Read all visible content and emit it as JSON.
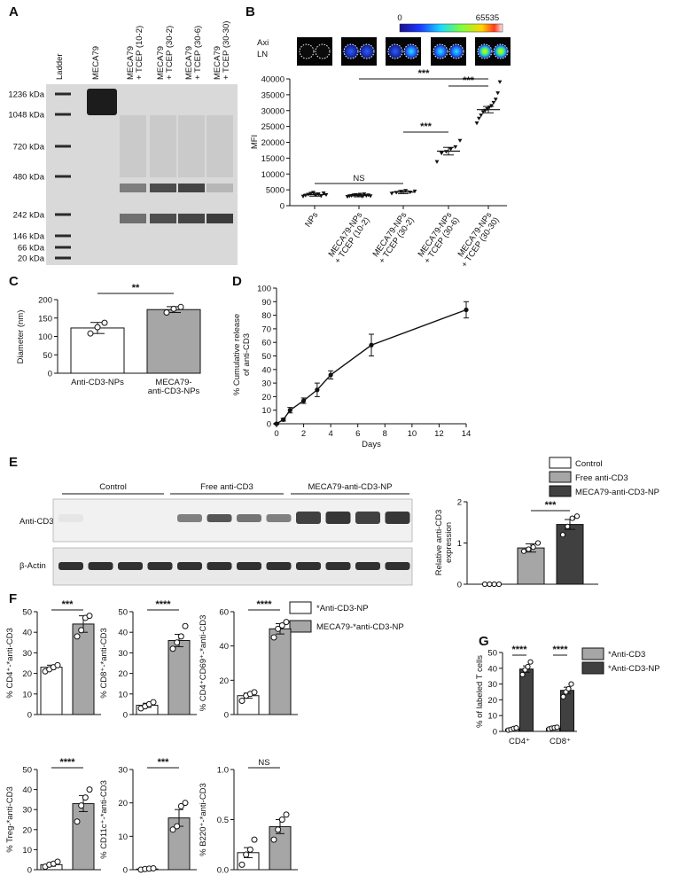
{
  "panels": {
    "A": {
      "label": "A",
      "lanes": [
        "Ladder",
        "MECA79",
        "MECA79\n+ TCEP (10-2)",
        "MECA79\n+ TCEP (30-2)",
        "MECA79\n+ TCEP (30-6)",
        "MECA79\n+ TCEP (30-30)"
      ],
      "markers": [
        "1236 kDa",
        "1048 kDa",
        "720 kDa",
        "480 kDa",
        "242 kDa",
        "146 kDa",
        "66 kDa",
        "20 kDa"
      ]
    },
    "B": {
      "label": "B",
      "colorbar_min": "0",
      "colorbar_max": "65535",
      "image_label_1": "Axi",
      "image_label_2": "LN"
    },
    "C": {
      "label": "C"
    },
    "D": {
      "label": "D"
    },
    "E": {
      "label": "E",
      "blot_groups": [
        "Control",
        "Free anti-CD3",
        "MECA79-anti-CD3-NP"
      ],
      "row_labels": [
        "Anti-CD3",
        "β-Actin"
      ],
      "legend": [
        "Control",
        "Free anti-CD3",
        "MECA79-anti-CD3-NP"
      ]
    },
    "F": {
      "label": "F",
      "legend": [
        "*Anti-CD3-NP",
        "MECA79-*anti-CD3-NP"
      ]
    },
    "G": {
      "label": "G",
      "legend": [
        "*Anti-CD3",
        "*Anti-CD3-NP"
      ]
    }
  },
  "chart_data": [
    {
      "id": "B",
      "type": "scatter",
      "categories": [
        "NPs",
        "MECA79-NPs\n+ TCEP (10-2)",
        "MECA79-NPs\n+ TCEP (30-2)",
        "MECA79-NPs\n+ TCEP (30-6)",
        "MECA79-NPs\n+ TCEP (30-30)"
      ],
      "means": [
        3500,
        3200,
        4300,
        17200,
        30300
      ],
      "errors": [
        500,
        400,
        500,
        1200,
        1000
      ],
      "points": [
        [
          2900,
          3200,
          3500,
          3800,
          4100,
          3300,
          3600,
          3000,
          3900,
          3400
        ],
        [
          2800,
          3000,
          3100,
          3300,
          3400,
          3200,
          3500,
          2900,
          3600,
          3100,
          3300,
          3000
        ],
        [
          3800,
          4100,
          4400,
          4700,
          4200,
          4500
        ],
        [
          13800,
          16500,
          17000,
          17800,
          18500,
          20500
        ],
        [
          26000,
          27500,
          28500,
          29500,
          30000,
          30500,
          31000,
          31500,
          32500,
          33500,
          35500,
          39000
        ]
      ],
      "ylabel": "MFI",
      "ylim": [
        0,
        40000
      ],
      "yticks": [
        0,
        5000,
        10000,
        15000,
        20000,
        25000,
        30000,
        35000,
        40000
      ],
      "significance": [
        {
          "from": 0,
          "to": 2,
          "label": "NS"
        },
        {
          "from": 2,
          "to": 3,
          "label": "***"
        },
        {
          "from": 1,
          "to": 4,
          "label": "***"
        },
        {
          "from": 3,
          "to": 4,
          "label": "***"
        }
      ]
    },
    {
      "id": "C",
      "type": "bar",
      "categories": [
        "Anti-CD3-NPs",
        "MECA79-\nanti-CD3-NPs"
      ],
      "values": [
        123,
        173
      ],
      "errors": [
        15,
        8
      ],
      "points": [
        [
          108,
          125,
          137
        ],
        [
          165,
          175,
          180
        ]
      ],
      "colors": [
        "#ffffff",
        "#a6a6a6"
      ],
      "ylabel": "Diameter (nm)",
      "ylim": [
        0,
        200
      ],
      "yticks": [
        0,
        50,
        100,
        150,
        200
      ],
      "significance": [
        {
          "from": 0,
          "to": 1,
          "label": "**"
        }
      ]
    },
    {
      "id": "D",
      "type": "line",
      "x": [
        0,
        0.5,
        1,
        2,
        3,
        4,
        7,
        14
      ],
      "values": [
        0,
        3,
        10,
        17,
        25,
        36,
        58,
        84
      ],
      "errors": [
        0.5,
        1,
        2,
        2,
        5,
        3,
        8,
        6
      ],
      "xlabel": "Days",
      "ylabel": "% Cumulative release\nof anti-CD3",
      "xlim": [
        0,
        14
      ],
      "xticks": [
        0,
        2,
        4,
        6,
        8,
        10,
        12,
        14
      ],
      "ylim": [
        0,
        100
      ],
      "yticks": [
        0,
        10,
        20,
        30,
        40,
        50,
        60,
        70,
        80,
        90,
        100
      ]
    },
    {
      "id": "E",
      "type": "bar",
      "categories": [
        "Control",
        "Free anti-CD3",
        "MECA79-anti-CD3-NP"
      ],
      "values": [
        0,
        0.88,
        1.45
      ],
      "errors": [
        0,
        0.1,
        0.12
      ],
      "points": [
        [
          0,
          0,
          0,
          0
        ],
        [
          0.8,
          0.85,
          0.9,
          1.0
        ],
        [
          1.2,
          1.4,
          1.6,
          1.65
        ]
      ],
      "colors": [
        "#ffffff",
        "#a6a6a6",
        "#404040"
      ],
      "ylabel": "Relative anti-CD3\nexpression",
      "ylim": [
        0,
        2
      ],
      "yticks": [
        0,
        1,
        2
      ],
      "significance": [
        {
          "from": 1,
          "to": 2,
          "label": "***"
        }
      ]
    },
    {
      "id": "F1",
      "type": "bar",
      "ylabel": "% CD4⁺-*anti-CD3",
      "values": [
        23,
        44
      ],
      "errors": [
        1,
        4
      ],
      "points": [
        [
          21,
          22,
          23,
          24
        ],
        [
          38,
          41,
          47,
          48
        ]
      ],
      "ylim": [
        0,
        50
      ],
      "yticks": [
        0,
        10,
        20,
        30,
        40,
        50
      ],
      "significance": [
        {
          "from": 0,
          "to": 1,
          "label": "***"
        }
      ]
    },
    {
      "id": "F2",
      "type": "bar",
      "ylabel": "% CD8⁺-*anti-CD3",
      "values": [
        4.5,
        36
      ],
      "errors": [
        1,
        3
      ],
      "points": [
        [
          3,
          4,
          5,
          6
        ],
        [
          32,
          35,
          38,
          43
        ]
      ],
      "ylim": [
        0,
        50
      ],
      "yticks": [
        0,
        10,
        20,
        30,
        40,
        50
      ],
      "significance": [
        {
          "from": 0,
          "to": 1,
          "label": "****"
        }
      ]
    },
    {
      "id": "F3",
      "type": "bar",
      "ylabel": "% CD4⁺CD69⁺-*anti-CD3",
      "values": [
        11,
        50
      ],
      "errors": [
        1.5,
        3
      ],
      "points": [
        [
          8,
          11,
          12,
          13
        ],
        [
          45,
          50,
          52,
          54
        ]
      ],
      "ylim": [
        0,
        60
      ],
      "yticks": [
        0,
        20,
        40,
        60
      ],
      "significance": [
        {
          "from": 0,
          "to": 1,
          "label": "****"
        }
      ]
    },
    {
      "id": "F4",
      "type": "bar",
      "ylabel": "% Treg-*anti-CD3",
      "values": [
        2.5,
        33
      ],
      "errors": [
        0.8,
        4
      ],
      "points": [
        [
          1.5,
          2.5,
          3,
          4
        ],
        [
          24,
          32,
          36,
          40
        ]
      ],
      "ylim": [
        0,
        50
      ],
      "yticks": [
        0,
        10,
        20,
        30,
        40,
        50
      ],
      "significance": [
        {
          "from": 0,
          "to": 1,
          "label": "****"
        }
      ]
    },
    {
      "id": "F5",
      "type": "bar",
      "ylabel": "% CD11c⁺-*anti-CD3",
      "values": [
        0.2,
        15.5
      ],
      "errors": [
        0.1,
        2.5
      ],
      "points": [
        [
          0,
          0.2,
          0.3,
          0.4
        ],
        [
          12,
          13,
          19,
          20
        ]
      ],
      "ylim": [
        0,
        30
      ],
      "yticks": [
        0,
        10,
        20,
        30
      ],
      "significance": [
        {
          "from": 0,
          "to": 1,
          "label": "***"
        }
      ]
    },
    {
      "id": "F6",
      "type": "bar",
      "ylabel": "% B220⁺-*anti-CD3",
      "values": [
        0.17,
        0.43
      ],
      "errors": [
        0.05,
        0.07
      ],
      "points": [
        [
          0.05,
          0.15,
          0.2,
          0.3
        ],
        [
          0.3,
          0.4,
          0.5,
          0.55
        ]
      ],
      "ylim": [
        0,
        1.0
      ],
      "yticks": [
        0,
        0.5,
        1.0
      ],
      "significance": [
        {
          "from": 0,
          "to": 1,
          "label": "NS"
        }
      ]
    },
    {
      "id": "G",
      "type": "bar",
      "categories": [
        "CD4⁺",
        "CD8⁺"
      ],
      "series": [
        {
          "name": "*Anti-CD3",
          "values": [
            1.5,
            2
          ],
          "errors": [
            0.5,
            0.5
          ],
          "points": [
            [
              0.8,
              1.2,
              1.8,
              2.2
            ],
            [
              1.5,
              2,
              2.3,
              2.6
            ]
          ]
        },
        {
          "name": "*Anti-CD3-NP",
          "values": [
            39.5,
            26
          ],
          "errors": [
            2,
            2
          ],
          "points": [
            [
              36,
              39,
              41,
              44
            ],
            [
              22,
              25,
              27,
              30
            ]
          ]
        }
      ],
      "colors": [
        "#a6a6a6",
        "#404040"
      ],
      "ylabel": "% of labeled T cells",
      "ylim": [
        0,
        50
      ],
      "yticks": [
        0,
        10,
        20,
        30,
        40,
        50
      ],
      "significance": [
        {
          "group": 0,
          "label": "****"
        },
        {
          "group": 1,
          "label": "****"
        }
      ]
    }
  ]
}
